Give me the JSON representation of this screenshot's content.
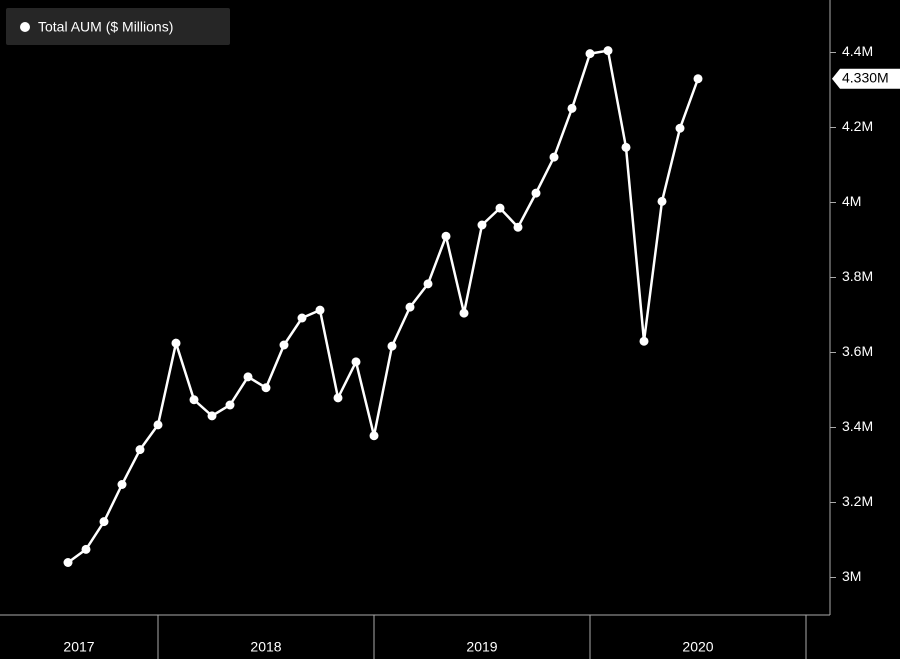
{
  "chart_data": {
    "type": "line",
    "legend": "Total AUM ($ Millions)",
    "categories": [
      null,
      null,
      null,
      null,
      null,
      null,
      null,
      null,
      null,
      null,
      null,
      null,
      null,
      null,
      null,
      null,
      null,
      null,
      null,
      null,
      null,
      null,
      null,
      null,
      null,
      null,
      null,
      null,
      null,
      null,
      null,
      null,
      null,
      null,
      null,
      null
    ],
    "x_groups": [
      {
        "label": "2017",
        "size": 6
      },
      {
        "label": "2018",
        "size": 12
      },
      {
        "label": "2019",
        "size": 12
      },
      {
        "label": "2020",
        "size": 6
      }
    ],
    "series": [
      {
        "name": "Total AUM ($ Millions)",
        "color": "#ffffff",
        "values": [
          3.04,
          3.075,
          3.149,
          3.248,
          3.341,
          3.407,
          3.625,
          3.474,
          3.431,
          3.46,
          3.535,
          3.506,
          3.62,
          3.692,
          3.713,
          3.479,
          3.575,
          3.378,
          3.617,
          3.721,
          3.783,
          3.91,
          3.705,
          3.94,
          3.985,
          3.934,
          4.025,
          4.121,
          4.251,
          4.397,
          4.405,
          4.147,
          3.63,
          4.003,
          4.198,
          4.33
        ],
        "value_labels": [
          null,
          null,
          null,
          null,
          null,
          null,
          null,
          null,
          null,
          null,
          null,
          null,
          null,
          null,
          null,
          null,
          null,
          null,
          null,
          null,
          null,
          null,
          null,
          null,
          null,
          null,
          null,
          null,
          null,
          null,
          null,
          null,
          null,
          null,
          null,
          "4.330M"
        ]
      }
    ],
    "ylim": [
      2.9,
      4.54
    ],
    "yticks": [
      {
        "value": 3,
        "label": "3M"
      },
      {
        "value": 3.2,
        "label": "3.2M"
      },
      {
        "value": 3.4,
        "label": "3.4M"
      },
      {
        "value": 3.6,
        "label": "3.6M"
      },
      {
        "value": 3.8,
        "label": "3.8M"
      },
      {
        "value": 4,
        "label": "4M"
      },
      {
        "value": 4.2,
        "label": "4.2M"
      },
      {
        "value": 4.4,
        "label": "4.4M"
      }
    ],
    "grid": false
  }
}
